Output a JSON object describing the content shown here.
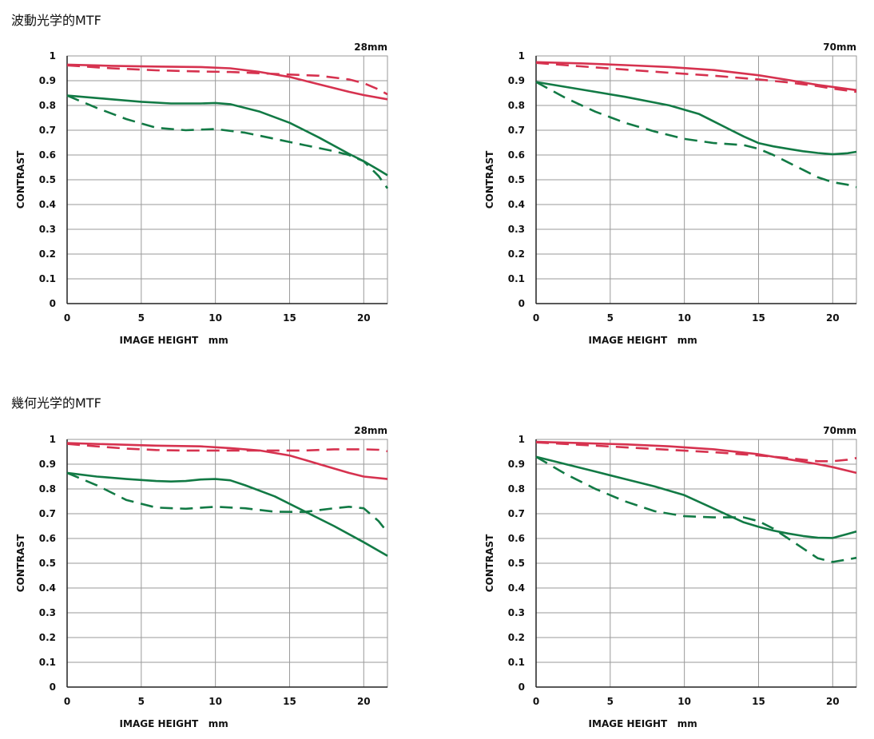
{
  "sections": [
    {
      "title": "波動光学的MTF"
    },
    {
      "title": "幾何光学的MTF"
    }
  ],
  "colors": {
    "sagittal_red": "#d6324f",
    "meridional_green": "#127a45",
    "grid": "#9a9a9a",
    "frame": "#222222"
  },
  "chart_data": [
    {
      "type": "line",
      "section": "波動光学的MTF",
      "title": "28mm",
      "xlabel": "IMAGE HEIGHT   mm",
      "ylabel": "CONTRAST",
      "xlim": [
        0,
        21.6
      ],
      "ylim": [
        0,
        1
      ],
      "xticks": [
        "0",
        "5",
        "10",
        "15",
        "20"
      ],
      "yticks": [
        "0",
        "0.1",
        "0.2",
        "0.3",
        "0.4",
        "0.5",
        "0.6",
        "0.7",
        "0.8",
        "0.9",
        "1"
      ],
      "grid": true,
      "series": [
        {
          "color": "red",
          "style": "solid",
          "x": [
            0,
            3,
            6,
            9,
            11,
            13,
            15,
            17,
            19,
            20,
            21.6
          ],
          "y": [
            0.965,
            0.96,
            0.957,
            0.955,
            0.95,
            0.935,
            0.915,
            0.885,
            0.855,
            0.842,
            0.825
          ]
        },
        {
          "color": "red",
          "style": "dashed",
          "x": [
            0,
            3,
            6,
            9,
            11,
            13,
            15,
            17,
            19,
            20,
            21,
            21.6
          ],
          "y": [
            0.962,
            0.95,
            0.942,
            0.937,
            0.935,
            0.93,
            0.925,
            0.92,
            0.905,
            0.89,
            0.865,
            0.845
          ]
        },
        {
          "color": "green",
          "style": "solid",
          "x": [
            0,
            3,
            5,
            7,
            9,
            10,
            11,
            13,
            15,
            17,
            19,
            20,
            21,
            21.6
          ],
          "y": [
            0.84,
            0.825,
            0.815,
            0.808,
            0.808,
            0.81,
            0.805,
            0.775,
            0.73,
            0.67,
            0.605,
            0.575,
            0.54,
            0.518
          ]
        },
        {
          "color": "green",
          "style": "dashed",
          "x": [
            0,
            2,
            4,
            6,
            8,
            10,
            12,
            14,
            16,
            18,
            19,
            20,
            21,
            21.6
          ],
          "y": [
            0.84,
            0.79,
            0.745,
            0.71,
            0.7,
            0.705,
            0.69,
            0.665,
            0.64,
            0.615,
            0.6,
            0.575,
            0.515,
            0.465
          ]
        }
      ]
    },
    {
      "type": "line",
      "section": "波動光学的MTF",
      "title": "70mm",
      "xlabel": "IMAGE HEIGHT   mm",
      "ylabel": "CONTRAST",
      "xlim": [
        0,
        21.6
      ],
      "ylim": [
        0,
        1
      ],
      "xticks": [
        "0",
        "5",
        "10",
        "15",
        "20"
      ],
      "yticks": [
        "0",
        "0.1",
        "0.2",
        "0.3",
        "0.4",
        "0.5",
        "0.6",
        "0.7",
        "0.8",
        "0.9",
        "1"
      ],
      "grid": true,
      "series": [
        {
          "color": "red",
          "style": "solid",
          "x": [
            0,
            3,
            6,
            9,
            12,
            15,
            17,
            19,
            20,
            21.6
          ],
          "y": [
            0.975,
            0.97,
            0.963,
            0.955,
            0.943,
            0.922,
            0.903,
            0.883,
            0.875,
            0.862
          ]
        },
        {
          "color": "red",
          "style": "dashed",
          "x": [
            0,
            3,
            6,
            9,
            12,
            15,
            17,
            19,
            20,
            21.6
          ],
          "y": [
            0.972,
            0.958,
            0.945,
            0.932,
            0.92,
            0.905,
            0.893,
            0.878,
            0.868,
            0.855
          ]
        },
        {
          "color": "green",
          "style": "solid",
          "x": [
            0,
            3,
            6,
            9,
            11,
            13,
            14,
            15,
            16,
            17,
            18,
            19,
            20,
            21,
            21.6
          ],
          "y": [
            0.895,
            0.865,
            0.835,
            0.8,
            0.765,
            0.705,
            0.675,
            0.648,
            0.635,
            0.625,
            0.615,
            0.608,
            0.603,
            0.607,
            0.613
          ]
        },
        {
          "color": "green",
          "style": "dashed",
          "x": [
            0,
            2,
            4,
            6,
            8,
            10,
            12,
            14,
            15,
            16,
            17,
            18,
            19,
            20,
            21,
            21.6
          ],
          "y": [
            0.895,
            0.83,
            0.775,
            0.73,
            0.695,
            0.665,
            0.648,
            0.64,
            0.625,
            0.6,
            0.57,
            0.54,
            0.51,
            0.49,
            0.48,
            0.47
          ]
        }
      ]
    },
    {
      "type": "line",
      "section": "幾何光学的MTF",
      "title": "28mm",
      "xlabel": "IMAGE HEIGHT   mm",
      "ylabel": "CONTRAST",
      "xlim": [
        0,
        21.6
      ],
      "ylim": [
        0,
        1
      ],
      "xticks": [
        "0",
        "5",
        "10",
        "15",
        "20"
      ],
      "yticks": [
        "0",
        "0.1",
        "0.2",
        "0.3",
        "0.4",
        "0.5",
        "0.6",
        "0.7",
        "0.8",
        "0.9",
        "1"
      ],
      "grid": true,
      "series": [
        {
          "color": "red",
          "style": "solid",
          "x": [
            0,
            3,
            6,
            9,
            11,
            13,
            15,
            17,
            19,
            20,
            21.6
          ],
          "y": [
            0.985,
            0.98,
            0.975,
            0.972,
            0.965,
            0.955,
            0.935,
            0.9,
            0.865,
            0.85,
            0.84
          ]
        },
        {
          "color": "red",
          "style": "dashed",
          "x": [
            0,
            2,
            4,
            6,
            8,
            10,
            12,
            14,
            16,
            18,
            20,
            21,
            21.6
          ],
          "y": [
            0.982,
            0.972,
            0.963,
            0.957,
            0.955,
            0.955,
            0.955,
            0.955,
            0.955,
            0.96,
            0.96,
            0.958,
            0.952
          ]
        },
        {
          "color": "green",
          "style": "solid",
          "x": [
            0,
            2,
            4,
            6,
            7,
            8,
            9,
            10,
            11,
            12,
            14,
            16,
            18,
            20,
            21.6
          ],
          "y": [
            0.865,
            0.85,
            0.84,
            0.832,
            0.83,
            0.832,
            0.838,
            0.84,
            0.835,
            0.815,
            0.77,
            0.71,
            0.65,
            0.585,
            0.53
          ]
        },
        {
          "color": "green",
          "style": "dashed",
          "x": [
            0,
            2,
            4,
            6,
            8,
            10,
            12,
            14,
            16,
            18,
            19,
            20,
            21,
            21.6
          ],
          "y": [
            0.865,
            0.815,
            0.755,
            0.725,
            0.72,
            0.728,
            0.722,
            0.708,
            0.707,
            0.722,
            0.728,
            0.722,
            0.67,
            0.625
          ]
        }
      ]
    },
    {
      "type": "line",
      "section": "幾何光学的MTF",
      "title": "70mm",
      "xlabel": "IMAGE HEIGHT   mm",
      "ylabel": "CONTRAST",
      "xlim": [
        0,
        21.6
      ],
      "ylim": [
        0,
        1
      ],
      "xticks": [
        "0",
        "5",
        "10",
        "15",
        "20"
      ],
      "yticks": [
        "0",
        "0.1",
        "0.2",
        "0.3",
        "0.4",
        "0.5",
        "0.6",
        "0.7",
        "0.8",
        "0.9",
        "1"
      ],
      "grid": true,
      "series": [
        {
          "color": "red",
          "style": "solid",
          "x": [
            0,
            3,
            6,
            9,
            12,
            15,
            17,
            19,
            20,
            21.6
          ],
          "y": [
            0.99,
            0.985,
            0.98,
            0.972,
            0.96,
            0.94,
            0.92,
            0.9,
            0.888,
            0.865
          ]
        },
        {
          "color": "red",
          "style": "dashed",
          "x": [
            0,
            3,
            6,
            9,
            12,
            15,
            17,
            18,
            19,
            20,
            21,
            21.6
          ],
          "y": [
            0.988,
            0.978,
            0.968,
            0.958,
            0.948,
            0.935,
            0.925,
            0.918,
            0.912,
            0.912,
            0.918,
            0.925
          ]
        },
        {
          "color": "green",
          "style": "solid",
          "x": [
            0,
            2,
            4,
            6,
            8,
            10,
            12,
            14,
            15,
            16,
            17,
            18,
            19,
            20,
            21,
            21.6
          ],
          "y": [
            0.93,
            0.9,
            0.87,
            0.84,
            0.81,
            0.775,
            0.72,
            0.665,
            0.647,
            0.632,
            0.62,
            0.61,
            0.603,
            0.602,
            0.618,
            0.628
          ]
        },
        {
          "color": "green",
          "style": "dashed",
          "x": [
            0,
            2,
            4,
            6,
            8,
            10,
            12,
            13,
            14,
            15,
            16,
            17,
            18,
            19,
            20,
            21,
            21.6
          ],
          "y": [
            0.93,
            0.86,
            0.8,
            0.75,
            0.71,
            0.69,
            0.685,
            0.685,
            0.685,
            0.67,
            0.64,
            0.6,
            0.56,
            0.52,
            0.505,
            0.515,
            0.522
          ]
        }
      ]
    }
  ]
}
